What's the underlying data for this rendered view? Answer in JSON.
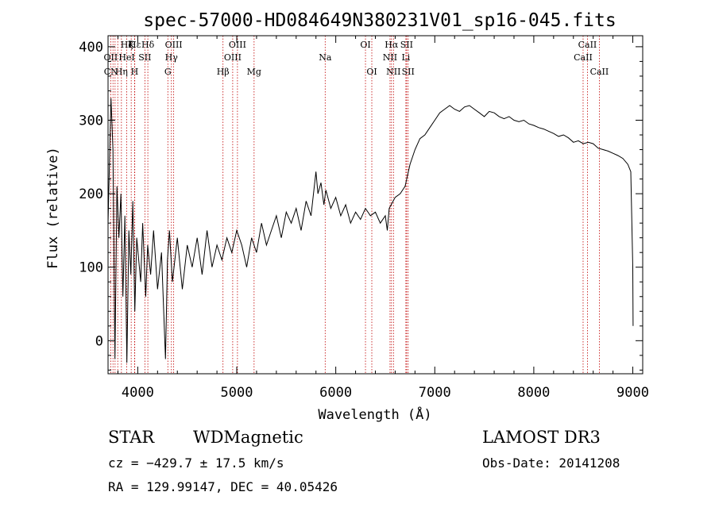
{
  "title": "spec-57000-HD084649N380231V01_sp16-045.fits",
  "colors": {
    "spectrum": "#000000",
    "marker": "#c00000",
    "axis": "#000000",
    "background": "#ffffff"
  },
  "chart_data": {
    "type": "line",
    "xlabel": "Wavelength (Å)",
    "ylabel": "Flux (relative)",
    "xlim": [
      3700,
      9100
    ],
    "ylim": [
      -45,
      415
    ],
    "grid": false,
    "x_ticks": [
      "4000",
      "5000",
      "6000",
      "7000",
      "8000",
      "9000"
    ],
    "y_ticks": [
      "0",
      "100",
      "200",
      "300",
      "400"
    ],
    "series": [
      {
        "x": [
          3700,
          3730,
          3750,
          3770,
          3790,
          3810,
          3830,
          3850,
          3870,
          3890,
          3910,
          3930,
          3950,
          3970,
          3990,
          4010,
          4030,
          4050,
          4080,
          4100,
          4130,
          4160,
          4200,
          4240,
          4280,
          4300,
          4320,
          4350,
          4400,
          4450,
          4500,
          4550,
          4600,
          4650,
          4700,
          4750,
          4800,
          4850,
          4900,
          4950,
          5000,
          5050,
          5100,
          5150,
          5200,
          5250,
          5300,
          5350,
          5400,
          5450,
          5500,
          5550,
          5600,
          5650,
          5700,
          5750,
          5800,
          5820,
          5850,
          5880,
          5900,
          5950,
          6000,
          6050,
          6100,
          6150,
          6200,
          6250,
          6300,
          6350,
          6400,
          6450,
          6500,
          6520,
          6540,
          6560,
          6580,
          6600,
          6650,
          6700,
          6750,
          6800,
          6850,
          6900,
          6950,
          7000,
          7050,
          7100,
          7150,
          7200,
          7250,
          7300,
          7350,
          7400,
          7450,
          7500,
          7550,
          7600,
          7650,
          7700,
          7750,
          7800,
          7850,
          7900,
          7950,
          8000,
          8050,
          8100,
          8150,
          8200,
          8250,
          8300,
          8350,
          8400,
          8450,
          8500,
          8550,
          8600,
          8650,
          8700,
          8750,
          8800,
          8850,
          8900,
          8950,
          8980,
          9000,
          9003
        ],
        "y": [
          160,
          330,
          260,
          -25,
          210,
          140,
          200,
          60,
          170,
          -30,
          150,
          90,
          190,
          40,
          140,
          110,
          80,
          160,
          60,
          130,
          90,
          150,
          70,
          120,
          -25,
          110,
          150,
          80,
          140,
          70,
          130,
          100,
          140,
          90,
          150,
          100,
          130,
          110,
          140,
          120,
          150,
          130,
          100,
          140,
          120,
          160,
          130,
          150,
          170,
          140,
          175,
          160,
          180,
          150,
          190,
          170,
          230,
          200,
          215,
          185,
          205,
          180,
          195,
          170,
          185,
          160,
          175,
          165,
          180,
          170,
          175,
          160,
          170,
          150,
          180,
          185,
          190,
          195,
          200,
          210,
          240,
          260,
          275,
          280,
          290,
          300,
          310,
          315,
          320,
          315,
          312,
          318,
          320,
          315,
          310,
          305,
          312,
          310,
          305,
          302,
          305,
          300,
          298,
          300,
          295,
          293,
          290,
          288,
          285,
          282,
          278,
          280,
          276,
          270,
          272,
          268,
          270,
          268,
          262,
          260,
          258,
          255,
          252,
          248,
          240,
          230,
          100,
          20
        ]
      }
    ],
    "annotations": {
      "row1": [
        {
          "label": "Hε",
          "x": 3970
        },
        {
          "label": "Hδ",
          "x": 4102
        },
        {
          "label": "OIII",
          "x": 4363
        },
        {
          "label": "OIII",
          "x": 5007
        },
        {
          "label": "OI",
          "x": 6300
        },
        {
          "label": "Hα",
          "x": 6563
        },
        {
          "label": "SII",
          "x": 6716
        },
        {
          "label": "CaII",
          "x": 8542
        }
      ],
      "row1b": [
        {
          "label": "Hζ",
          "x": 3889
        },
        {
          "label": "K",
          "x": 3934
        }
      ],
      "row2": [
        {
          "label": "OII",
          "x": 3727
        },
        {
          "label": "HeI",
          "x": 3889
        },
        {
          "label": "SII",
          "x": 4072
        },
        {
          "label": "Hγ",
          "x": 4340
        },
        {
          "label": "OIII",
          "x": 4959
        },
        {
          "label": "Na",
          "x": 5893
        },
        {
          "label": "NII",
          "x": 6548
        },
        {
          "label": "Li",
          "x": 6708
        },
        {
          "label": "CaII",
          "x": 8498
        }
      ],
      "row3": [
        {
          "label": "CN",
          "x": 3730
        },
        {
          "label": "Hη",
          "x": 3835
        },
        {
          "label": "H",
          "x": 3968
        },
        {
          "label": "G",
          "x": 4304
        },
        {
          "label": "Hβ",
          "x": 4861
        },
        {
          "label": "Mg",
          "x": 5175
        },
        {
          "label": "OI",
          "x": 6364
        },
        {
          "label": "NII",
          "x": 6583
        },
        {
          "label": "SII",
          "x": 6731
        },
        {
          "label": "CaII",
          "x": 8662
        }
      ],
      "lines": [
        3727,
        3750,
        3771,
        3798,
        3835,
        3889,
        3934,
        3968,
        3970,
        4072,
        4102,
        4304,
        4340,
        4363,
        4861,
        4959,
        5007,
        5175,
        5893,
        6300,
        6364,
        6548,
        6563,
        6583,
        6708,
        6716,
        6731,
        8498,
        8542,
        8662
      ]
    }
  },
  "info": {
    "object_class": "STAR",
    "subclass": "WDMagnetic",
    "survey": "LAMOST DR3",
    "cz": "cz = −429.7 ± 17.5 km/s",
    "obs_date": "Obs-Date: 20141208",
    "coords": "RA = 129.99147, DEC =  40.05426"
  }
}
